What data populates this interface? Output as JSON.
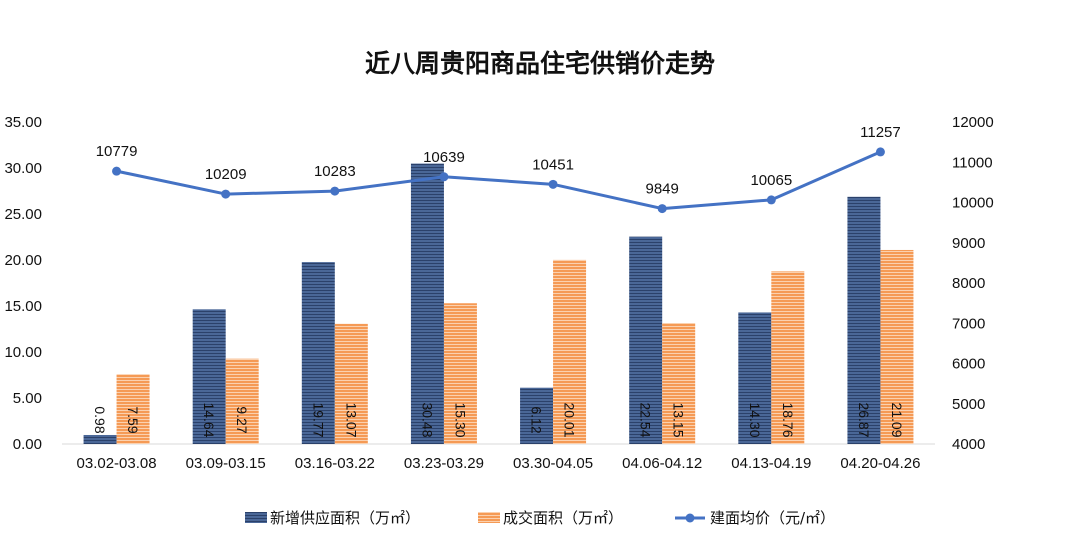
{
  "chart_data": {
    "type": "bar",
    "title": "近八周贵阳商品住宅供销价走势",
    "categories": [
      "03.02-03.08",
      "03.09-03.15",
      "03.16-03.22",
      "03.23-03.29",
      "03.30-04.05",
      "04.06-04.12",
      "04.13-04.19",
      "04.20-04.26"
    ],
    "series": [
      {
        "name": "新增供应面积（万㎡）",
        "kind": "bar",
        "axis": "left",
        "color": "#3d5a8a",
        "values": [
          0.98,
          14.64,
          19.77,
          30.48,
          6.12,
          22.54,
          14.3,
          26.87
        ],
        "labels": [
          "0.98",
          "14.64",
          "19.77",
          "30.48",
          "6.12",
          "22.54",
          "14.30",
          "26.87"
        ]
      },
      {
        "name": "成交面积（万㎡）",
        "kind": "bar",
        "axis": "left",
        "color": "#f0883c",
        "values": [
          7.59,
          9.27,
          13.07,
          15.3,
          20.01,
          13.15,
          18.76,
          21.09
        ],
        "labels": [
          "7.59",
          "9.27",
          "13.07",
          "15.30",
          "20.01",
          "13.15",
          "18.76",
          "21.09"
        ]
      },
      {
        "name": "建面均价（元/㎡）",
        "kind": "line",
        "axis": "right",
        "color": "#4472c4",
        "values": [
          10779,
          10209,
          10283,
          10639,
          10451,
          9849,
          10065,
          11257
        ],
        "labels": [
          "10779",
          "10209",
          "10283",
          "10639",
          "10451",
          "9849",
          "10065",
          "11257"
        ]
      }
    ],
    "y_left": {
      "min": 0,
      "max": 35,
      "step": 5,
      "tick_labels": [
        "0.00",
        "5.00",
        "10.00",
        "15.00",
        "20.00",
        "25.00",
        "30.00",
        "35.00"
      ]
    },
    "y_right": {
      "min": 4000,
      "max": 12000,
      "step": 1000,
      "tick_labels": [
        "4000",
        "5000",
        "6000",
        "7000",
        "8000",
        "9000",
        "10000",
        "11000",
        "12000"
      ]
    },
    "legend_position": "bottom",
    "grid": false
  }
}
